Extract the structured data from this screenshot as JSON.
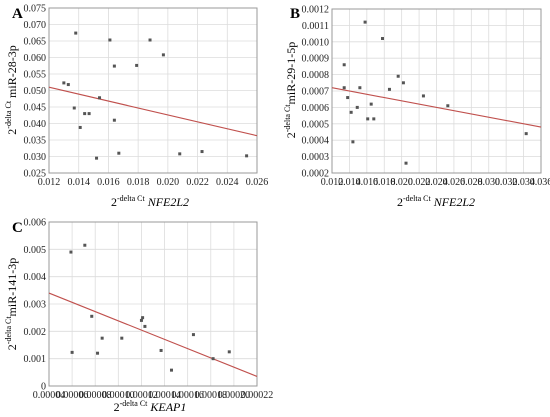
{
  "chart_data": [
    {
      "panel": "A",
      "type": "scatter",
      "xlabel": {
        "base": "2",
        "sup": "-delta Ct",
        "gene": "NFE2L2"
      },
      "ylabel": {
        "base": "2",
        "sup": "-delta Ct",
        "rest": " miR-28-3p"
      },
      "xlim": [
        0.012,
        0.026
      ],
      "ylim": [
        0.025,
        0.075
      ],
      "xticks": [
        "0.012",
        "0.014",
        "0.016",
        "0.018",
        "0.020",
        "0.022",
        "0.024",
        "0.026"
      ],
      "yticks": [
        "0.025",
        "0.030",
        "0.035",
        "0.040",
        "0.045",
        "0.050",
        "0.055",
        "0.060",
        "0.065",
        "0.070",
        "0.075"
      ],
      "grid": true,
      "points": [
        [
          0.0138,
          0.0674
        ],
        [
          0.013,
          0.0523
        ],
        [
          0.0133,
          0.0518
        ],
        [
          0.0137,
          0.0447
        ],
        [
          0.0141,
          0.0388
        ],
        [
          0.0144,
          0.043
        ],
        [
          0.0147,
          0.043
        ],
        [
          0.0152,
          0.0295
        ],
        [
          0.0154,
          0.0478
        ],
        [
          0.0161,
          0.0653
        ],
        [
          0.0164,
          0.0574
        ],
        [
          0.0164,
          0.041
        ],
        [
          0.0167,
          0.031
        ],
        [
          0.0179,
          0.0576
        ],
        [
          0.0188,
          0.0653
        ],
        [
          0.0197,
          0.0608
        ],
        [
          0.0208,
          0.0308
        ],
        [
          0.0223,
          0.0315
        ],
        [
          0.0253,
          0.0302
        ]
      ],
      "trendline": [
        [
          0.012,
          0.051
        ],
        [
          0.026,
          0.0363
        ]
      ]
    },
    {
      "panel": "B",
      "type": "scatter",
      "xlabel": {
        "base": "2",
        "sup": "-delta Ct",
        "gene": "NFE2L2"
      },
      "ylabel": {
        "base": "2",
        "sup": "-delta Ct",
        "rest": "miR-29-1-5p"
      },
      "xlim": [
        0.012,
        0.036
      ],
      "ylim": [
        0.0002,
        0.0012
      ],
      "xticks": [
        "0.012",
        "0.014",
        "0.016",
        "0.018",
        "0.020",
        "0.022",
        "0.024",
        "0.026",
        "0.028",
        "0.030",
        "0.032",
        "0.034",
        "0.036"
      ],
      "yticks": [
        "0.0002",
        "0.0003",
        "0.0004",
        "0.0005",
        "0.0006",
        "0.0007",
        "0.0008",
        "0.0009",
        "0.0010",
        "0.0011",
        "0.0012"
      ],
      "grid": true,
      "points": [
        [
          0.0134,
          0.00086
        ],
        [
          0.0134,
          0.00072
        ],
        [
          0.0138,
          0.00066
        ],
        [
          0.0142,
          0.00057
        ],
        [
          0.0144,
          0.00039
        ],
        [
          0.0149,
          0.0006
        ],
        [
          0.0152,
          0.00072
        ],
        [
          0.0158,
          0.00112
        ],
        [
          0.0161,
          0.00053
        ],
        [
          0.0165,
          0.00062
        ],
        [
          0.0168,
          0.00053
        ],
        [
          0.0178,
          0.00102
        ],
        [
          0.0186,
          0.00071
        ],
        [
          0.0196,
          0.00079
        ],
        [
          0.0202,
          0.00075
        ],
        [
          0.0205,
          0.00026
        ],
        [
          0.0225,
          0.00067
        ],
        [
          0.0253,
          0.00061
        ],
        [
          0.0343,
          0.00044
        ]
      ],
      "trendline": [
        [
          0.012,
          0.00072
        ],
        [
          0.036,
          0.00048
        ]
      ]
    },
    {
      "panel": "C",
      "type": "scatter",
      "xlabel": {
        "base": "2",
        "sup": "-delta Ct",
        "gene": "KEAP1"
      },
      "ylabel": {
        "base": "2",
        "sup": "-delta Ct",
        "rest": "miR-141-3p"
      },
      "xlim": [
        4e-05,
        0.00022
      ],
      "ylim": [
        0,
        0.006
      ],
      "xticks": [
        "0.00004",
        "0.00006",
        "0.00008",
        "0.00010",
        "0.00012",
        "0.00014",
        "0.00016",
        "0.00018",
        "0.00020",
        "0.00022"
      ],
      "yticks": [
        "0",
        "0.001",
        "0.002",
        "0.003",
        "0.004",
        "0.005",
        "0.006"
      ],
      "grid": true,
      "points": [
        [
          5.9e-05,
          0.0049
        ],
        [
          6e-05,
          0.00123
        ],
        [
          7.1e-05,
          0.00515
        ],
        [
          7.7e-05,
          0.00255
        ],
        [
          8.2e-05,
          0.0012
        ],
        [
          8.6e-05,
          0.00175
        ],
        [
          0.000103,
          0.00175
        ],
        [
          0.00012,
          0.0024
        ],
        [
          0.000121,
          0.0025
        ],
        [
          0.000123,
          0.00218
        ],
        [
          0.000137,
          0.0013
        ],
        [
          0.000146,
          0.00058
        ],
        [
          0.000165,
          0.00188
        ],
        [
          0.000182,
          0.001
        ],
        [
          0.000196,
          0.00125
        ]
      ],
      "trendline": [
        [
          4e-05,
          0.0034
        ],
        [
          0.00022,
          0.00035
        ]
      ]
    }
  ]
}
